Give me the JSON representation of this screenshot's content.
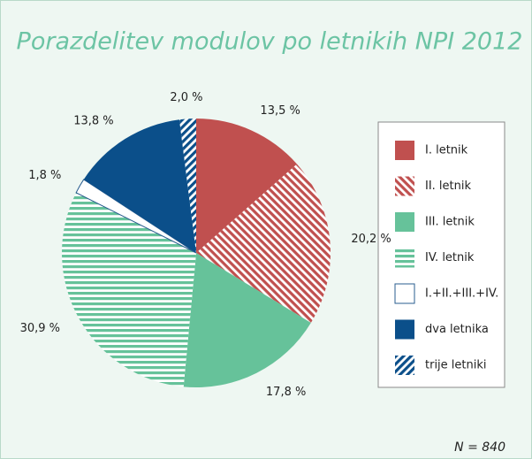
{
  "chart_data": {
    "type": "pie",
    "title": "Porazdelitev modulov po letnikih NPI 2012",
    "categories": [
      "I. letnik",
      "II. letnik",
      "III. letnik",
      "IV. letnik",
      "I.+II.+III.+IV.",
      "dva letnika",
      "trije letniki"
    ],
    "values": [
      13.5,
      20.2,
      17.8,
      30.9,
      1.8,
      13.8,
      2.0
    ],
    "value_labels": [
      "13,5 %",
      "20,2 %",
      "17,8 %",
      "30,9 %",
      "1,8 %",
      "13,8 %",
      "2,0 %"
    ],
    "colors": [
      "#c0504f",
      "#c0504f",
      "#66c29a",
      "#66c29a",
      "#ffffff",
      "#0b4f8a",
      "#0b4f8a"
    ],
    "patterns": [
      "solid",
      "diagonal",
      "solid",
      "horizontal",
      "solid",
      "solid",
      "diagonal-reverse"
    ],
    "legend": "right",
    "annotation": "N = 840"
  }
}
